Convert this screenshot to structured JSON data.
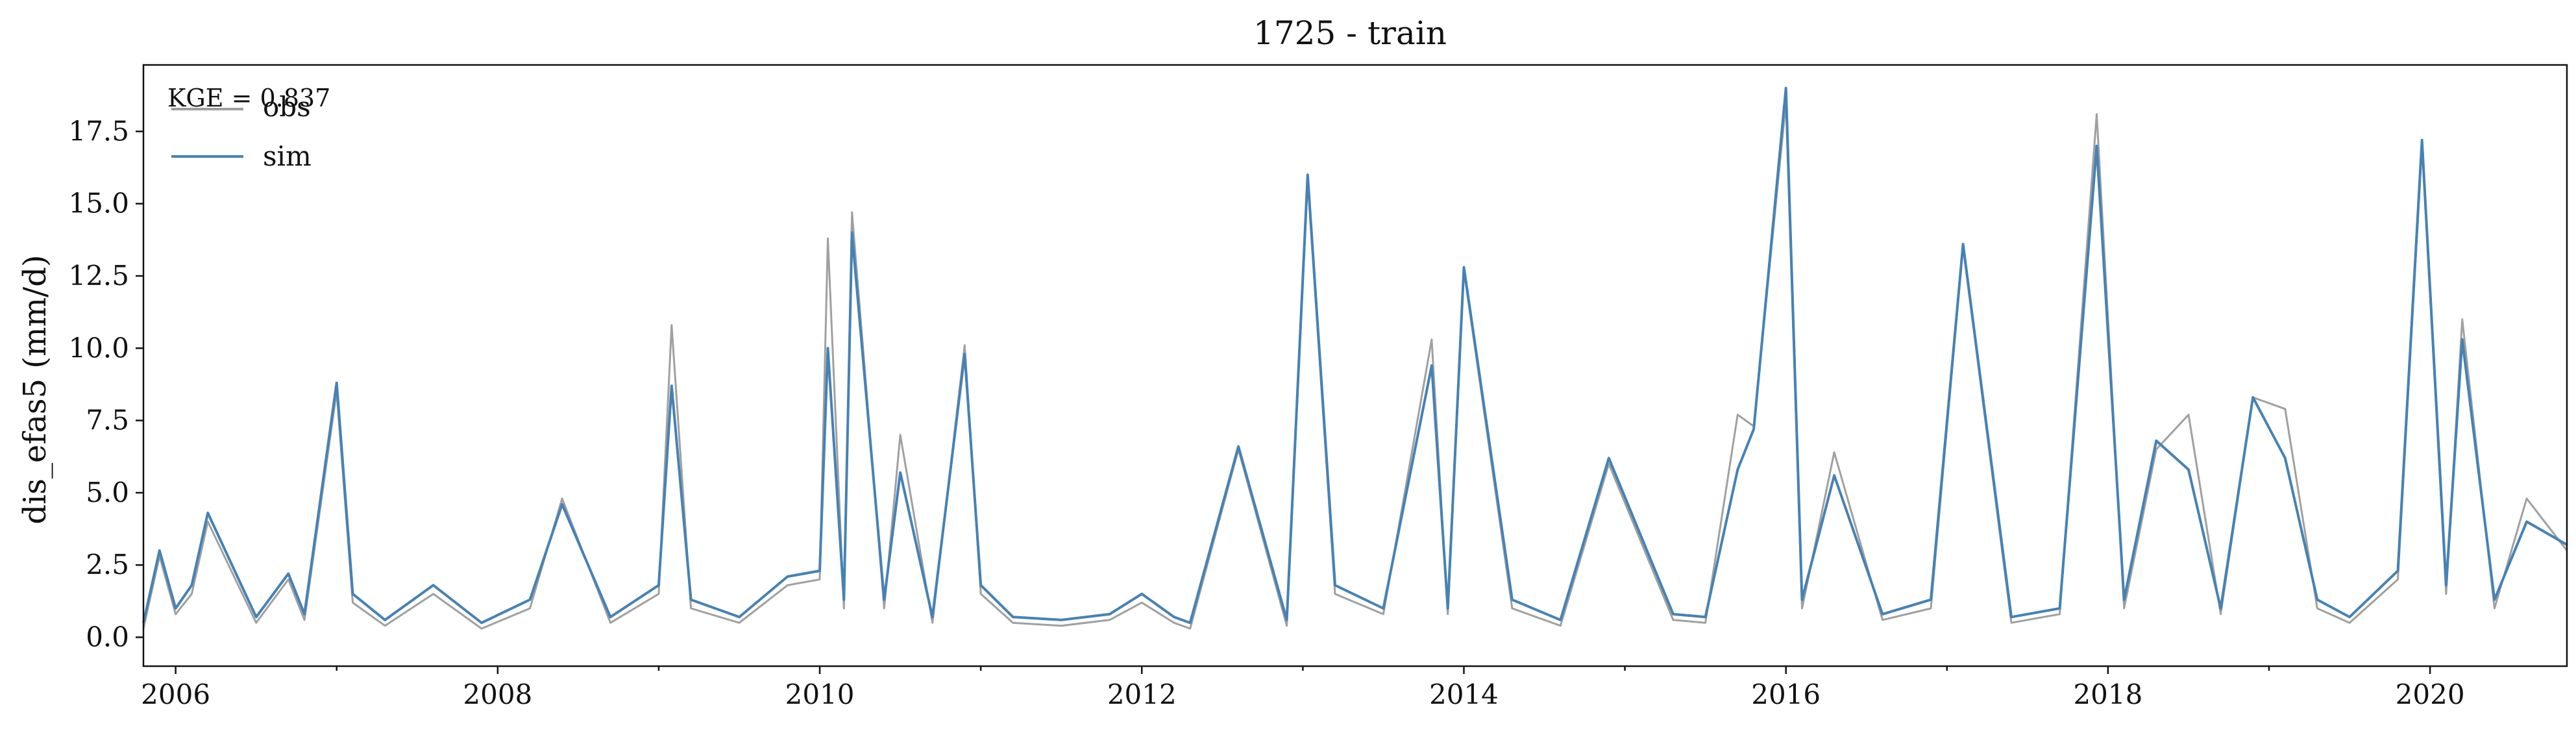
{
  "chart_data": {
    "type": "line",
    "title": "1725 - train",
    "ylabel": "dis_efas5 (mm/d)",
    "xlabel": "",
    "xlim": [
      2005.8,
      2020.85
    ],
    "ylim": [
      -1.0,
      19.8
    ],
    "x_ticks": [
      2006,
      2008,
      2010,
      2012,
      2014,
      2016,
      2018,
      2020
    ],
    "x_tick_labels": [
      "2006",
      "2008",
      "2010",
      "2012",
      "2014",
      "2016",
      "2018",
      "2020"
    ],
    "y_ticks": [
      0.0,
      2.5,
      5.0,
      7.5,
      10.0,
      12.5,
      15.0,
      17.5
    ],
    "y_tick_labels": [
      "0.0",
      "2.5",
      "5.0",
      "7.5",
      "10.0",
      "12.5",
      "15.0",
      "17.5"
    ],
    "legend": {
      "position": "upper-left",
      "entries": [
        "obs",
        "sim"
      ]
    },
    "annotation": "KGE = 0.837",
    "grid": false,
    "series": [
      {
        "name": "obs",
        "color": "#a0a0a0",
        "x": [
          2005.8,
          2005.9,
          2006.0,
          2006.1,
          2006.2,
          2006.5,
          2006.7,
          2006.8,
          2007.0,
          2007.1,
          2007.3,
          2007.6,
          2007.9,
          2008.2,
          2008.4,
          2008.7,
          2009.0,
          2009.08,
          2009.2,
          2009.5,
          2009.8,
          2010.0,
          2010.05,
          2010.15,
          2010.2,
          2010.4,
          2010.5,
          2010.7,
          2010.9,
          2011.0,
          2011.2,
          2011.5,
          2011.8,
          2012.0,
          2012.2,
          2012.3,
          2012.6,
          2012.9,
          2013.03,
          2013.2,
          2013.5,
          2013.8,
          2013.9,
          2014.0,
          2014.3,
          2014.6,
          2014.9,
          2015.3,
          2015.5,
          2015.7,
          2015.8,
          2016.0,
          2016.1,
          2016.3,
          2016.6,
          2016.9,
          2017.1,
          2017.4,
          2017.7,
          2017.93,
          2018.1,
          2018.3,
          2018.5,
          2018.7,
          2018.9,
          2019.1,
          2019.3,
          2019.5,
          2019.8,
          2019.95,
          2020.1,
          2020.2,
          2020.4,
          2020.6,
          2020.85
        ],
        "y": [
          0.3,
          2.8,
          0.8,
          1.5,
          4.0,
          0.5,
          2.0,
          0.6,
          8.5,
          1.2,
          0.4,
          1.5,
          0.3,
          1.0,
          4.8,
          0.5,
          1.5,
          10.8,
          1.0,
          0.5,
          1.8,
          2.0,
          13.8,
          1.0,
          14.7,
          1.0,
          7.0,
          0.5,
          10.1,
          1.5,
          0.5,
          0.4,
          0.6,
          1.2,
          0.5,
          0.3,
          6.5,
          0.4,
          15.8,
          1.5,
          0.8,
          10.3,
          0.8,
          12.7,
          1.0,
          0.4,
          6.0,
          0.6,
          0.5,
          7.7,
          7.3,
          18.5,
          1.0,
          6.4,
          0.6,
          1.0,
          13.5,
          0.5,
          0.8,
          18.1,
          1.0,
          6.5,
          7.7,
          0.8,
          8.3,
          7.9,
          1.0,
          0.5,
          2.0,
          17.0,
          1.5,
          11.0,
          1.0,
          4.8,
          3.0
        ]
      },
      {
        "name": "sim",
        "color": "#4682b4",
        "x": [
          2005.8,
          2005.9,
          2006.0,
          2006.1,
          2006.2,
          2006.5,
          2006.7,
          2006.8,
          2007.0,
          2007.1,
          2007.3,
          2007.6,
          2007.9,
          2008.2,
          2008.4,
          2008.7,
          2009.0,
          2009.08,
          2009.2,
          2009.5,
          2009.8,
          2010.0,
          2010.05,
          2010.15,
          2010.2,
          2010.4,
          2010.5,
          2010.7,
          2010.9,
          2011.0,
          2011.2,
          2011.5,
          2011.8,
          2012.0,
          2012.2,
          2012.3,
          2012.6,
          2012.9,
          2013.03,
          2013.2,
          2013.5,
          2013.8,
          2013.9,
          2014.0,
          2014.3,
          2014.6,
          2014.9,
          2015.3,
          2015.5,
          2015.7,
          2015.8,
          2016.0,
          2016.1,
          2016.3,
          2016.6,
          2016.9,
          2017.1,
          2017.4,
          2017.7,
          2017.93,
          2018.1,
          2018.3,
          2018.5,
          2018.7,
          2018.9,
          2019.1,
          2019.3,
          2019.5,
          2019.8,
          2019.95,
          2020.1,
          2020.2,
          2020.4,
          2020.6,
          2020.85
        ],
        "y": [
          0.5,
          3.0,
          1.0,
          1.8,
          4.3,
          0.7,
          2.2,
          0.8,
          8.8,
          1.5,
          0.6,
          1.8,
          0.5,
          1.3,
          4.6,
          0.7,
          1.8,
          8.7,
          1.3,
          0.7,
          2.1,
          2.3,
          10.0,
          1.3,
          14.0,
          1.3,
          5.7,
          0.7,
          9.8,
          1.8,
          0.7,
          0.6,
          0.8,
          1.5,
          0.7,
          0.5,
          6.6,
          0.6,
          16.0,
          1.8,
          1.0,
          9.4,
          1.0,
          12.8,
          1.3,
          0.6,
          6.2,
          0.8,
          0.7,
          5.8,
          7.2,
          19.0,
          1.3,
          5.6,
          0.8,
          1.3,
          13.6,
          0.7,
          1.0,
          17.0,
          1.3,
          6.8,
          5.8,
          1.0,
          8.3,
          6.2,
          1.3,
          0.7,
          2.3,
          17.2,
          1.8,
          10.3,
          1.3,
          4.0,
          3.2
        ]
      }
    ]
  }
}
